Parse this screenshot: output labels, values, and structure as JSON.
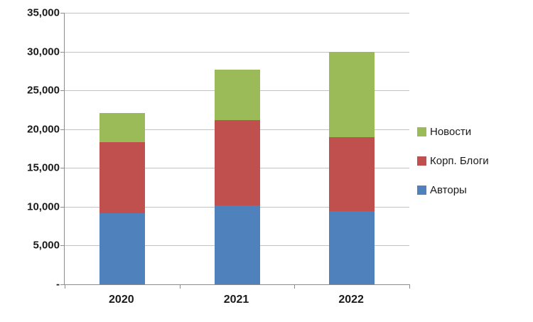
{
  "chart_data": {
    "type": "bar",
    "stacked": true,
    "title": "",
    "xlabel": "",
    "ylabel": "",
    "categories": [
      "2020",
      "2021",
      "2022"
    ],
    "series": [
      {
        "name": "Авторы",
        "color": "#4F81BD",
        "values": [
          9200,
          10200,
          9400
        ]
      },
      {
        "name": "Корп. Блоги",
        "color": "#C0504D",
        "values": [
          9100,
          11000,
          9600
        ]
      },
      {
        "name": "Новости",
        "color": "#9BBB59",
        "values": [
          3800,
          6500,
          11000
        ]
      }
    ],
    "ylim": [
      0,
      35000
    ],
    "ytick_step": 5000,
    "ytick_labels": [
      "-",
      "5,000",
      "10,000",
      "15,000",
      "20,000",
      "25,000",
      "30,000",
      "35,000"
    ],
    "grid": true,
    "legend_position": "right",
    "legend_order": [
      "Новости",
      "Корп. Блоги",
      "Авторы"
    ]
  }
}
